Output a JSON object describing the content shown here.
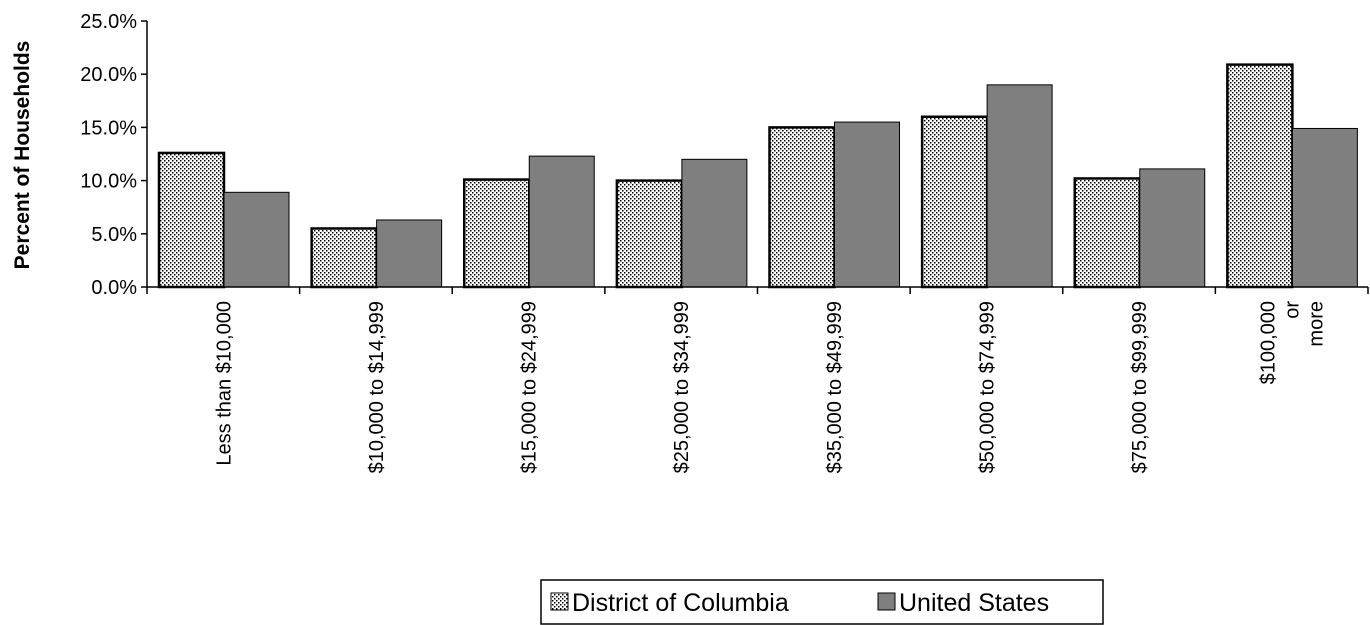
{
  "chart_data": {
    "type": "bar",
    "title": "",
    "xlabel": "",
    "ylabel": "Percent of Households",
    "ylim": [
      0,
      25
    ],
    "yticks": [
      "0.0%",
      "5.0%",
      "10.0%",
      "15.0%",
      "20.0%",
      "25.0%"
    ],
    "categories": [
      [
        "Less than $10,000"
      ],
      [
        "$10,000 to $14,999"
      ],
      [
        "$15,000 to $24,999"
      ],
      [
        "$25,000 to $34,999"
      ],
      [
        "$35,000 to $49,999"
      ],
      [
        "$50,000 to $74,999"
      ],
      [
        "$75,000 to $99,999"
      ],
      [
        "$100,000",
        "or",
        "more"
      ]
    ],
    "series": [
      {
        "name": "District of Columbia",
        "values": [
          12.6,
          5.5,
          10.1,
          10.0,
          15.0,
          16.0,
          10.2,
          20.9
        ],
        "color": "#e8e8e8",
        "pattern": "dotted"
      },
      {
        "name": "United States",
        "values": [
          8.9,
          6.3,
          12.3,
          12.0,
          15.5,
          19.0,
          11.1,
          14.9
        ],
        "color": "#7f7f7f"
      }
    ],
    "legend_position": "bottom-center",
    "grid": false
  }
}
